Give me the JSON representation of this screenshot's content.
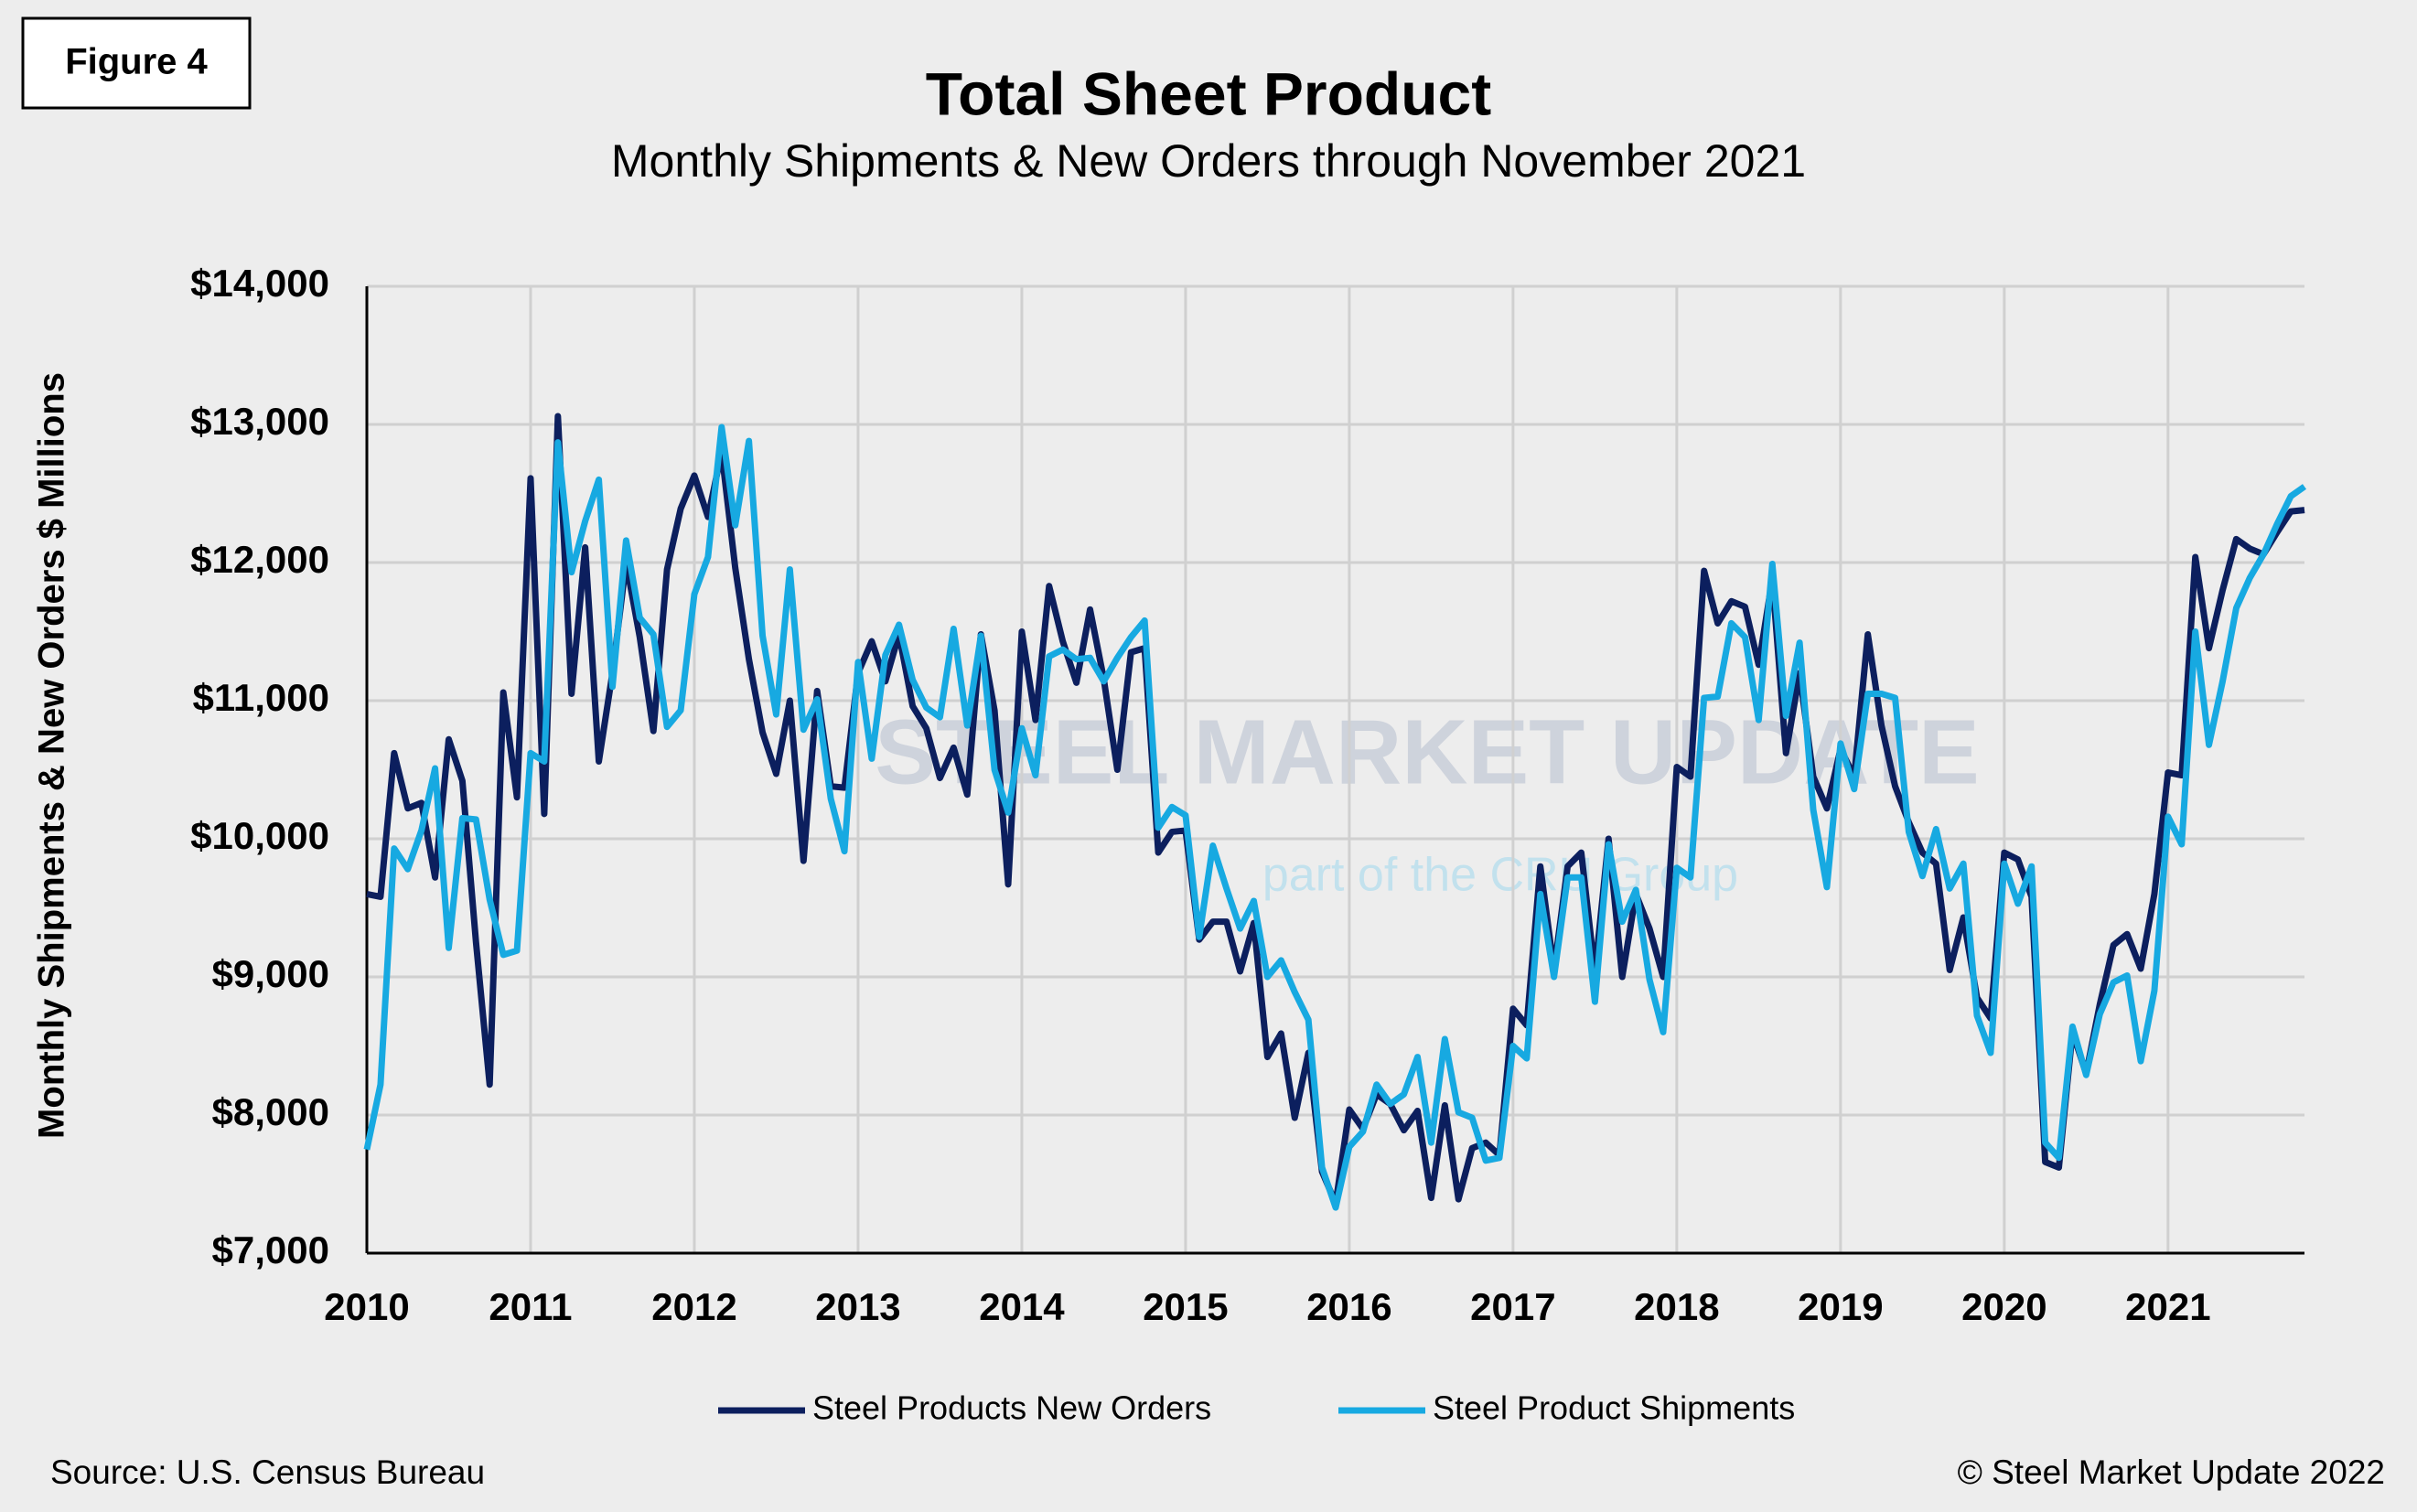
{
  "figure_label": "Figure 4",
  "source": "Source: U.S. Census Bureau",
  "copyright": "© Steel Market Update 2022",
  "chart_data": {
    "type": "line",
    "title": "Total Sheet Product",
    "subtitle": "Monthly Shipments & New Orders through November 2021",
    "y_label": "Monthly Shipments & New Orders $ Millions",
    "watermark": {
      "title": "STEEL MARKET UPDATE",
      "subtitle": "part of the CRU Group"
    },
    "categories": [
      "2010",
      null,
      null,
      null,
      null,
      null,
      null,
      null,
      null,
      null,
      null,
      null,
      "2011",
      null,
      null,
      null,
      null,
      null,
      null,
      null,
      null,
      null,
      null,
      null,
      "2012",
      null,
      null,
      null,
      null,
      null,
      null,
      null,
      null,
      null,
      null,
      null,
      "2013",
      null,
      null,
      null,
      null,
      null,
      null,
      null,
      null,
      null,
      null,
      null,
      "2014",
      null,
      null,
      null,
      null,
      null,
      null,
      null,
      null,
      null,
      null,
      null,
      "2015",
      null,
      null,
      null,
      null,
      null,
      null,
      null,
      null,
      null,
      null,
      null,
      "2016",
      null,
      null,
      null,
      null,
      null,
      null,
      null,
      null,
      null,
      null,
      null,
      "2017",
      null,
      null,
      null,
      null,
      null,
      null,
      null,
      null,
      null,
      null,
      null,
      "2018",
      null,
      null,
      null,
      null,
      null,
      null,
      null,
      null,
      null,
      null,
      null,
      "2019",
      null,
      null,
      null,
      null,
      null,
      null,
      null,
      null,
      null,
      null,
      null,
      "2020",
      null,
      null,
      null,
      null,
      null,
      null,
      null,
      null,
      null,
      null,
      null,
      "2021",
      null,
      null,
      null,
      null,
      null,
      null,
      null,
      null,
      null,
      null
    ],
    "series": [
      {
        "name": "Steel Products New Orders",
        "color": "#0c1f5e",
        "values": [
          9600,
          9580,
          10620,
          10220,
          10260,
          9720,
          10720,
          10420,
          9250,
          8220,
          11060,
          10300,
          12610,
          10180,
          13060,
          11050,
          12110,
          10560,
          11200,
          12000,
          11460,
          10780,
          11950,
          12390,
          12630,
          12330,
          12800,
          11960,
          11300,
          10770,
          10470,
          11000,
          9840,
          11070,
          10380,
          10370,
          11200,
          11430,
          11140,
          11480,
          10960,
          10800,
          10440,
          10660,
          10320,
          11480,
          10930,
          9670,
          11500,
          10860,
          11830,
          11430,
          11130,
          11660,
          11160,
          10500,
          11350,
          11380,
          9900,
          10050,
          10060,
          9270,
          9400,
          9400,
          9040,
          9390,
          8420,
          8590,
          7980,
          8450,
          7590,
          7360,
          8040,
          7900,
          8150,
          8080,
          7890,
          8030,
          7400,
          8070,
          7390,
          7760,
          7800,
          7710,
          8770,
          8650,
          9800,
          9050,
          9800,
          9900,
          9030,
          10000,
          9000,
          9600,
          9350,
          9000,
          10520,
          10450,
          11940,
          11560,
          11720,
          11680,
          11260,
          11880,
          10620,
          11200,
          10450,
          10220,
          10650,
          10450,
          11480,
          10820,
          10380,
          10120,
          9900,
          9820,
          9050,
          9430,
          8850,
          8700,
          9900,
          9850,
          9580,
          7660,
          7620,
          8600,
          8300,
          8800,
          9230,
          9310,
          9060,
          9600,
          10480,
          10460,
          12040,
          11380,
          11800,
          12170,
          12100,
          12060,
          12220,
          12370,
          12380
        ]
      },
      {
        "name": "Steel Product Shipments",
        "color": "#17a9e1",
        "values": [
          7750,
          8220,
          9930,
          9780,
          10060,
          10510,
          9210,
          10150,
          10140,
          9560,
          9160,
          9190,
          10620,
          10560,
          12870,
          11930,
          12300,
          12600,
          11100,
          12160,
          11600,
          11480,
          10810,
          10930,
          11770,
          12040,
          12980,
          12270,
          12880,
          11470,
          10900,
          11950,
          10790,
          11010,
          10290,
          9910,
          11280,
          10580,
          11330,
          11550,
          11150,
          10950,
          10880,
          11520,
          10820,
          11470,
          10500,
          10190,
          10800,
          10460,
          11320,
          11370,
          11300,
          11310,
          11140,
          11310,
          11460,
          11580,
          10080,
          10230,
          10170,
          9290,
          9950,
          9640,
          9350,
          9550,
          9000,
          9120,
          8890,
          8690,
          7620,
          7330,
          7770,
          7880,
          8220,
          8080,
          8150,
          8420,
          7800,
          8550,
          8020,
          7980,
          7670,
          7690,
          8500,
          8410,
          9600,
          9000,
          9720,
          9720,
          8820,
          9960,
          9400,
          9630,
          8980,
          8600,
          9790,
          9720,
          11020,
          11030,
          11560,
          11460,
          10860,
          11990,
          10890,
          11420,
          10210,
          9650,
          10690,
          10360,
          11050,
          11050,
          11020,
          10050,
          9730,
          10070,
          9640,
          9820,
          8720,
          8450,
          9820,
          9530,
          9800,
          7800,
          7690,
          8640,
          8290,
          8730,
          8960,
          9010,
          8390,
          8900,
          10160,
          9960,
          11500,
          10680,
          11140,
          11670,
          11890,
          12060,
          12280,
          12480,
          12550
        ]
      }
    ],
    "ylim": [
      7000,
      14000
    ],
    "yticks": [
      {
        "value": 7000,
        "label": "$7,000"
      },
      {
        "value": 8000,
        "label": "$8,000"
      },
      {
        "value": 9000,
        "label": "$9,000"
      },
      {
        "value": 10000,
        "label": "$10,000"
      },
      {
        "value": 11000,
        "label": "$11,000"
      },
      {
        "value": 12000,
        "label": "$12,000"
      },
      {
        "value": 13000,
        "label": "$13,000"
      },
      {
        "value": 14000,
        "label": "$14,000"
      }
    ],
    "grid": true,
    "legend": "bottom"
  }
}
